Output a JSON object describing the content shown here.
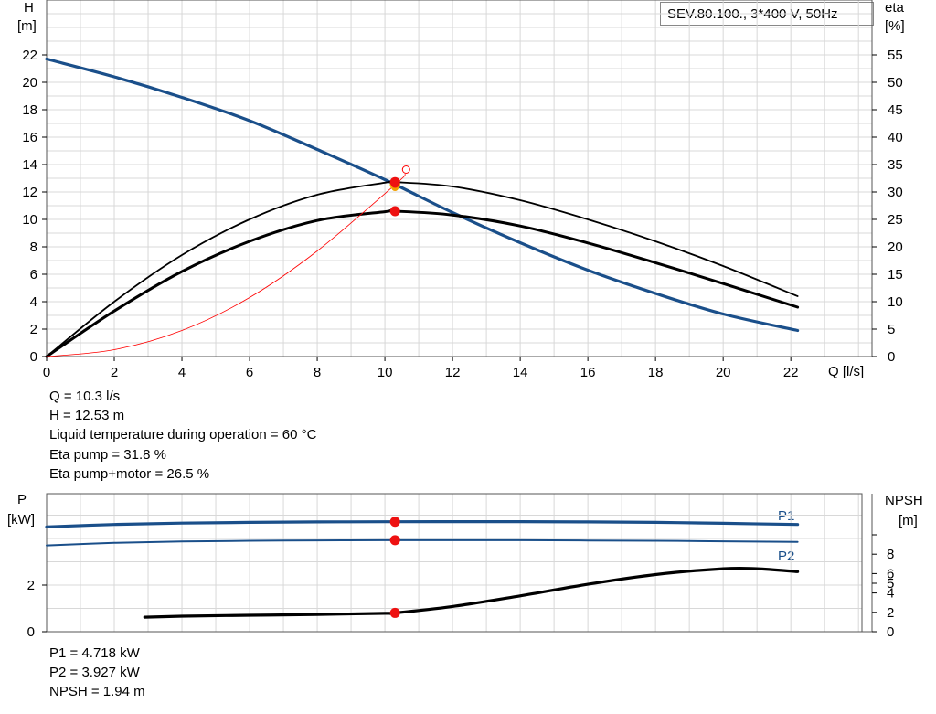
{
  "title": "SEV.80.100., 3*400 V, 50Hz",
  "top_chart": {
    "y_left_label": "H",
    "y_left_unit": "[m]",
    "y_right_label": "eta",
    "y_right_unit": "[%]",
    "x_label": "Q [l/s]",
    "x_ticks": [
      "0",
      "2",
      "4",
      "6",
      "8",
      "10",
      "12",
      "14",
      "16",
      "18",
      "20",
      "22"
    ],
    "y_left_ticks": [
      "0",
      "2",
      "4",
      "6",
      "8",
      "10",
      "12",
      "14",
      "16",
      "18",
      "20",
      "22"
    ],
    "y_right_ticks": [
      "0",
      "5",
      "10",
      "15",
      "20",
      "25",
      "30",
      "35",
      "40",
      "45",
      "50",
      "55"
    ]
  },
  "bottom_chart": {
    "y_left_label": "P",
    "y_left_unit": "[kW]",
    "y_right_label": "NPSH",
    "y_right_unit": "[m]",
    "y_left_ticks": [
      "0",
      "2"
    ],
    "y_right_ticks": [
      "0",
      "2",
      "4",
      "5",
      "6",
      "8"
    ],
    "p1_label": "P1",
    "p2_label": "P2"
  },
  "readouts_top": [
    "Q = 10.3 l/s",
    "H = 12.53 m",
    "Liquid temperature during operation = 60 °C",
    "Eta pump = 31.8 %",
    "Eta pump+motor = 26.5 %"
  ],
  "readouts_bottom": [
    "P1 = 4.718 kW",
    "P2 = 3.927 kW",
    "NPSH = 1.94 m"
  ],
  "colors": {
    "head": "#1a4f8a",
    "eta": "#000000",
    "system": "#ff0000",
    "power": "#1a4f8a",
    "npsh": "#000000",
    "grid": "#d8d8d8"
  },
  "chart_data": [
    {
      "type": "line",
      "xlabel": "Q [l/s]",
      "ylabel": "H [m]",
      "y2label": "eta [%]",
      "xlim": [
        0,
        24
      ],
      "ylim": [
        0,
        26
      ],
      "y2lim": [
        0,
        65
      ],
      "series": [
        {
          "id": "head",
          "axis": "left",
          "x": [
            0,
            2,
            4,
            6,
            8,
            10,
            12,
            14,
            16,
            18,
            20,
            22.2
          ],
          "y": [
            21.7,
            20.4,
            18.9,
            17.2,
            15.1,
            12.9,
            10.5,
            8.3,
            6.3,
            4.6,
            3.1,
            1.9
          ]
        },
        {
          "id": "eta_pump",
          "axis": "right",
          "x": [
            0,
            2,
            4,
            6,
            8,
            10,
            10.3,
            12,
            14,
            16,
            18,
            20,
            22.2
          ],
          "y": [
            0,
            10,
            18.5,
            25,
            29.5,
            31.7,
            31.8,
            31,
            28.5,
            25,
            21,
            16.5,
            11
          ]
        },
        {
          "id": "eta_total",
          "axis": "right",
          "x": [
            0,
            2,
            4,
            6,
            8,
            10,
            10.3,
            12,
            14,
            16,
            18,
            20,
            22.2
          ],
          "y": [
            0,
            8.3,
            15.5,
            21,
            24.8,
            26.4,
            26.5,
            25.8,
            23.8,
            20.7,
            17.1,
            13.3,
            9
          ]
        },
        {
          "id": "system",
          "axis": "left",
          "x": [
            0,
            2,
            4,
            6,
            8,
            10.3,
            10.6
          ],
          "y": [
            0,
            0.5,
            1.9,
            4.3,
            7.7,
            12.53,
            13.3
          ]
        }
      ],
      "markers": [
        {
          "x": 10.3,
          "y": 12.53,
          "axis": "left"
        },
        {
          "x": 10.3,
          "y": 31.8,
          "axis": "right"
        },
        {
          "x": 10.3,
          "y": 26.5,
          "axis": "right"
        }
      ]
    },
    {
      "type": "line",
      "ylabel": "P [kW]",
      "y2label": "NPSH [m]",
      "xlim": [
        0,
        24
      ],
      "ylim": [
        0,
        5.9
      ],
      "y2lim": [
        0,
        12
      ],
      "series": [
        {
          "name": "P1",
          "axis": "left",
          "x": [
            0,
            2,
            4,
            6,
            8,
            10,
            10.3,
            12,
            14,
            16,
            18,
            20,
            22.2
          ],
          "y": [
            4.5,
            4.6,
            4.66,
            4.69,
            4.71,
            4.717,
            4.718,
            4.72,
            4.72,
            4.71,
            4.69,
            4.65,
            4.6
          ]
        },
        {
          "name": "P2",
          "axis": "left",
          "x": [
            0,
            2,
            4,
            6,
            8,
            10,
            10.3,
            12,
            14,
            16,
            18,
            20,
            22.2
          ],
          "y": [
            3.7,
            3.81,
            3.87,
            3.9,
            3.917,
            3.926,
            3.927,
            3.927,
            3.925,
            3.915,
            3.9,
            3.88,
            3.85
          ]
        },
        {
          "id": "npsh",
          "axis": "right",
          "x": [
            2.9,
            4,
            6,
            8,
            10,
            10.3,
            12,
            14,
            16,
            18,
            20,
            21,
            22.2
          ],
          "y": [
            1.5,
            1.6,
            1.7,
            1.78,
            1.9,
            1.94,
            2.6,
            3.7,
            4.9,
            5.9,
            6.5,
            6.5,
            6.2
          ]
        }
      ],
      "markers": [
        {
          "x": 10.3,
          "y": 4.718,
          "axis": "left"
        },
        {
          "x": 10.3,
          "y": 3.927,
          "axis": "left"
        },
        {
          "x": 10.3,
          "y": 1.94,
          "axis": "right"
        }
      ]
    }
  ]
}
